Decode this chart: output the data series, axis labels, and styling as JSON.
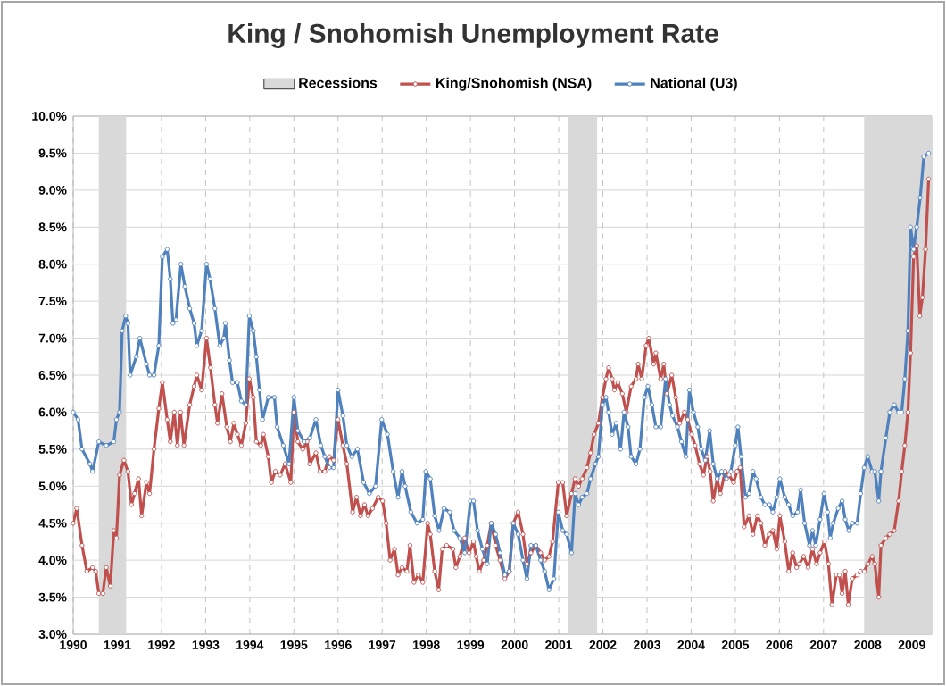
{
  "chart_data": {
    "type": "line",
    "title": "King / Snohomish Unemployment Rate",
    "xlim": [
      1990,
      2009.45
    ],
    "xticks": [
      1990,
      1991,
      1992,
      1993,
      1994,
      1995,
      1996,
      1997,
      1998,
      1999,
      2000,
      2001,
      2002,
      2003,
      2004,
      2005,
      2006,
      2007,
      2008,
      2009
    ],
    "ylim": [
      3.0,
      10.0
    ],
    "yticks": [
      {
        "value": 3.0,
        "label": "3.0%"
      },
      {
        "value": 3.5,
        "label": "3.5%"
      },
      {
        "value": 4.0,
        "label": "4.0%"
      },
      {
        "value": 4.5,
        "label": "4.5%"
      },
      {
        "value": 5.0,
        "label": "5.0%"
      },
      {
        "value": 5.5,
        "label": "5.5%"
      },
      {
        "value": 6.0,
        "label": "6.0%"
      },
      {
        "value": 6.5,
        "label": "6.5%"
      },
      {
        "value": 7.0,
        "label": "7.0%"
      },
      {
        "value": 7.5,
        "label": "7.5%"
      },
      {
        "value": 8.0,
        "label": "8.0%"
      },
      {
        "value": 8.5,
        "label": "8.5%"
      },
      {
        "value": 9.0,
        "label": "9.0%"
      },
      {
        "value": 9.5,
        "label": "9.5%"
      },
      {
        "value": 10.0,
        "label": "10.0%"
      }
    ],
    "grid": true,
    "legend": "top",
    "marker": "circle",
    "line_style": "solid",
    "bands": [
      {
        "axis": "x",
        "from": 1990.58,
        "to": 1991.2,
        "label": "Recessions",
        "color": "#d9d9d9"
      },
      {
        "axis": "x",
        "from": 2001.2,
        "to": 2001.87,
        "color": "#d9d9d9"
      },
      {
        "axis": "x",
        "from": 2007.92,
        "to": 2009.45,
        "color": "#d9d9d9"
      }
    ],
    "series": [
      {
        "name": "King/Snohomish (NSA)",
        "color": "#c0504d",
        "x": [
          1990.0,
          1990.08,
          1990.2,
          1990.31,
          1990.44,
          1990.51,
          1990.58,
          1990.67,
          1990.75,
          1990.84,
          1990.92,
          1990.98,
          1991.05,
          1991.15,
          1991.24,
          1991.32,
          1991.39,
          1991.48,
          1991.55,
          1991.66,
          1991.73,
          1991.83,
          1991.94,
          1992.02,
          1992.13,
          1992.2,
          1992.29,
          1992.36,
          1992.43,
          1992.51,
          1992.64,
          1992.74,
          1992.8,
          1992.91,
          1993.02,
          1993.11,
          1993.21,
          1993.27,
          1993.37,
          1993.48,
          1993.56,
          1993.64,
          1993.72,
          1993.81,
          1993.91,
          1993.99,
          1994.08,
          1994.15,
          1994.25,
          1994.31,
          1994.42,
          1994.49,
          1994.58,
          1994.69,
          1994.8,
          1994.93,
          1995.0,
          1995.09,
          1995.2,
          1995.3,
          1995.36,
          1995.5,
          1995.59,
          1995.7,
          1995.8,
          1995.9,
          1996.0,
          1996.11,
          1996.2,
          1996.33,
          1996.42,
          1996.51,
          1996.6,
          1996.68,
          1996.78,
          1996.91,
          1997.01,
          1997.09,
          1997.18,
          1997.28,
          1997.36,
          1997.45,
          1997.56,
          1997.63,
          1997.72,
          1997.82,
          1997.92,
          1998.03,
          1998.09,
          1998.19,
          1998.28,
          1998.36,
          1998.46,
          1998.6,
          1998.67,
          1998.76,
          1998.87,
          1998.97,
          1999.07,
          1999.13,
          1999.2,
          1999.3,
          1999.38,
          1999.47,
          1999.57,
          1999.67,
          1999.78,
          1999.88,
          1999.97,
          2000.08,
          2000.19,
          2000.28,
          2000.37,
          2000.48,
          2000.59,
          2000.68,
          2000.78,
          2000.86,
          2000.99,
          2001.09,
          2001.18,
          2001.29,
          2001.37,
          2001.45,
          2001.53,
          2001.64,
          2001.72,
          2001.8,
          2001.9,
          2001.99,
          2002.07,
          2002.13,
          2002.21,
          2002.26,
          2002.34,
          2002.44,
          2002.53,
          2002.64,
          2002.75,
          2002.8,
          2002.88,
          2002.98,
          2003.04,
          2003.15,
          2003.2,
          2003.31,
          2003.38,
          2003.45,
          2003.56,
          2003.65,
          2003.74,
          2003.85,
          2003.92,
          2004.01,
          2004.09,
          2004.19,
          2004.28,
          2004.36,
          2004.43,
          2004.5,
          2004.59,
          2004.66,
          2004.77,
          2004.86,
          2004.96,
          2005.04,
          2005.11,
          2005.2,
          2005.31,
          2005.4,
          2005.5,
          2005.58,
          2005.67,
          2005.77,
          2005.85,
          2005.94,
          2006.01,
          2006.12,
          2006.21,
          2006.3,
          2006.39,
          2006.45,
          2006.55,
          2006.65,
          2006.75,
          2006.84,
          2006.92,
          2007.02,
          2007.11,
          2007.19,
          2007.29,
          2007.36,
          2007.42,
          2007.49,
          2007.56,
          2007.65,
          2007.76,
          2007.84,
          2007.92,
          2008.0,
          2008.1,
          2008.16,
          2008.25,
          2008.3,
          2008.41,
          2008.5,
          2008.6,
          2008.7,
          2008.77,
          2008.84,
          2008.91,
          2008.97,
          2009.04,
          2009.11,
          2009.18,
          2009.24,
          2009.31,
          2009.38
        ],
        "values": [
          4.5,
          4.7,
          4.2,
          3.85,
          3.9,
          3.85,
          3.55,
          3.55,
          3.9,
          3.65,
          4.4,
          4.3,
          5.15,
          5.35,
          5.2,
          4.75,
          4.9,
          5.1,
          4.6,
          5.05,
          4.9,
          5.5,
          6.05,
          6.4,
          5.9,
          5.6,
          6.0,
          5.55,
          6.0,
          5.55,
          6.1,
          6.35,
          6.5,
          6.3,
          7.0,
          6.6,
          6.1,
          5.85,
          6.25,
          5.8,
          5.6,
          5.85,
          5.7,
          5.55,
          5.85,
          6.45,
          6.2,
          5.6,
          5.55,
          5.7,
          5.4,
          5.05,
          5.2,
          5.15,
          5.3,
          5.05,
          6.0,
          5.6,
          5.5,
          5.6,
          5.3,
          5.45,
          5.2,
          5.2,
          5.4,
          5.35,
          5.9,
          5.55,
          5.3,
          4.65,
          4.85,
          4.6,
          4.75,
          4.6,
          4.7,
          4.85,
          4.8,
          4.5,
          4.0,
          4.15,
          3.8,
          3.9,
          3.85,
          4.2,
          3.7,
          3.8,
          3.7,
          4.5,
          4.35,
          3.85,
          3.6,
          4.15,
          4.2,
          4.15,
          3.9,
          4.05,
          4.3,
          4.1,
          4.25,
          4.05,
          3.85,
          4.0,
          4.2,
          4.5,
          4.2,
          4.0,
          3.75,
          3.85,
          4.5,
          4.65,
          4.35,
          3.95,
          4.1,
          4.2,
          4.1,
          4.0,
          4.05,
          4.25,
          5.05,
          5.05,
          4.6,
          4.9,
          5.1,
          5.0,
          5.1,
          5.25,
          5.45,
          5.7,
          5.85,
          6.2,
          6.45,
          6.6,
          6.45,
          6.3,
          6.4,
          6.25,
          6.0,
          6.35,
          6.45,
          6.65,
          6.45,
          6.9,
          7.0,
          6.65,
          6.8,
          6.45,
          6.65,
          6.25,
          6.5,
          6.2,
          5.85,
          6.0,
          5.9,
          5.7,
          5.55,
          5.3,
          5.15,
          5.4,
          5.2,
          4.8,
          5.1,
          4.9,
          5.2,
          5.15,
          5.05,
          5.2,
          5.25,
          4.45,
          4.6,
          4.35,
          4.6,
          4.5,
          4.2,
          4.35,
          4.4,
          4.15,
          4.6,
          4.25,
          3.85,
          4.1,
          3.9,
          3.95,
          4.05,
          3.9,
          4.15,
          3.95,
          4.1,
          4.25,
          3.95,
          3.4,
          3.8,
          3.8,
          3.55,
          3.85,
          3.4,
          3.75,
          3.8,
          3.85,
          3.85,
          3.95,
          4.05,
          3.95,
          3.5,
          4.2,
          4.3,
          4.35,
          4.4,
          4.8,
          5.2,
          5.55,
          6.0,
          6.8,
          8.1,
          8.25,
          7.3,
          7.55,
          8.2,
          9.15
        ]
      },
      {
        "name": "National (U3)",
        "color": "#4f81bd",
        "x": [
          1990.0,
          1990.11,
          1990.2,
          1990.38,
          1990.44,
          1990.58,
          1990.75,
          1990.92,
          1990.98,
          1991.05,
          1991.11,
          1991.19,
          1991.24,
          1991.29,
          1991.43,
          1991.51,
          1991.66,
          1991.73,
          1991.83,
          1991.94,
          1992.02,
          1992.13,
          1992.2,
          1992.26,
          1992.33,
          1992.44,
          1992.53,
          1992.64,
          1992.74,
          1992.8,
          1992.91,
          1993.02,
          1993.1,
          1993.21,
          1993.32,
          1993.41,
          1993.45,
          1993.54,
          1993.61,
          1993.72,
          1993.81,
          1993.91,
          1993.99,
          1994.08,
          1994.15,
          1994.22,
          1994.29,
          1994.42,
          1994.56,
          1994.62,
          1994.76,
          1994.89,
          1995.0,
          1995.09,
          1995.23,
          1995.36,
          1995.5,
          1995.61,
          1995.7,
          1995.8,
          1995.9,
          1996.0,
          1996.11,
          1996.2,
          1996.31,
          1996.44,
          1996.58,
          1996.71,
          1996.85,
          1996.99,
          1997.12,
          1997.25,
          1997.36,
          1997.45,
          1997.52,
          1997.65,
          1997.79,
          1997.92,
          1997.99,
          1998.09,
          1998.19,
          1998.29,
          1998.4,
          1998.53,
          1998.63,
          1998.76,
          1998.87,
          1999.0,
          1999.07,
          1999.16,
          1999.27,
          1999.38,
          1999.47,
          1999.57,
          1999.67,
          1999.78,
          1999.88,
          1999.97,
          2000.08,
          2000.19,
          2000.28,
          2000.37,
          2000.48,
          2000.59,
          2000.68,
          2000.78,
          2000.89,
          2000.99,
          2001.09,
          2001.18,
          2001.29,
          2001.37,
          2001.45,
          2001.53,
          2001.64,
          2001.72,
          2001.83,
          2001.9,
          2001.99,
          2002.07,
          2002.13,
          2002.21,
          2002.3,
          2002.4,
          2002.48,
          2002.57,
          2002.64,
          2002.75,
          2002.84,
          2002.94,
          2003.02,
          2003.11,
          2003.2,
          2003.31,
          2003.42,
          2003.51,
          2003.58,
          2003.69,
          2003.78,
          2003.88,
          2003.96,
          2004.05,
          2004.15,
          2004.23,
          2004.32,
          2004.42,
          2004.5,
          2004.59,
          2004.69,
          2004.8,
          2004.9,
          2005.0,
          2005.06,
          2005.13,
          2005.23,
          2005.31,
          2005.4,
          2005.47,
          2005.58,
          2005.67,
          2005.77,
          2005.85,
          2005.94,
          2006.01,
          2006.12,
          2006.21,
          2006.3,
          2006.41,
          2006.48,
          2006.57,
          2006.68,
          2006.75,
          2006.82,
          2006.92,
          2007.01,
          2007.09,
          2007.15,
          2007.22,
          2007.33,
          2007.42,
          2007.49,
          2007.57,
          2007.65,
          2007.76,
          2007.84,
          2007.92,
          2008.0,
          2008.1,
          2008.16,
          2008.25,
          2008.3,
          2008.41,
          2008.5,
          2008.6,
          2008.7,
          2008.77,
          2008.84,
          2008.91,
          2008.97,
          2009.04,
          2009.11,
          2009.19,
          2009.27,
          2009.38
        ],
        "values": [
          6.0,
          5.9,
          5.5,
          5.3,
          5.2,
          5.6,
          5.55,
          5.6,
          5.9,
          6.0,
          7.1,
          7.3,
          7.2,
          6.5,
          6.75,
          7.0,
          6.65,
          6.5,
          6.5,
          6.9,
          8.1,
          8.2,
          7.8,
          7.2,
          7.25,
          8.0,
          7.7,
          7.4,
          7.2,
          6.9,
          7.1,
          8.0,
          7.8,
          7.4,
          6.9,
          7.0,
          7.2,
          6.7,
          6.4,
          6.4,
          6.15,
          6.1,
          7.3,
          7.1,
          6.75,
          6.3,
          5.9,
          6.2,
          6.2,
          5.8,
          5.55,
          5.3,
          6.2,
          5.75,
          5.6,
          5.65,
          5.9,
          5.55,
          5.4,
          5.25,
          5.25,
          6.3,
          5.95,
          5.55,
          5.4,
          5.5,
          5.05,
          4.9,
          5.0,
          5.9,
          5.7,
          5.2,
          4.85,
          5.2,
          5.0,
          4.65,
          4.5,
          4.55,
          5.2,
          5.1,
          4.6,
          4.4,
          4.7,
          4.65,
          4.4,
          4.3,
          4.1,
          4.8,
          4.8,
          4.4,
          4.15,
          3.95,
          4.5,
          4.35,
          4.1,
          3.8,
          3.85,
          4.5,
          4.35,
          4.0,
          3.75,
          4.2,
          4.2,
          4.0,
          3.85,
          3.6,
          3.75,
          4.65,
          4.4,
          4.35,
          4.1,
          4.9,
          4.75,
          4.85,
          4.9,
          5.1,
          5.3,
          5.4,
          6.1,
          6.2,
          6.0,
          5.7,
          5.85,
          5.5,
          6.0,
          5.8,
          5.4,
          5.3,
          5.5,
          6.2,
          6.35,
          6.1,
          5.8,
          5.8,
          6.45,
          6.1,
          5.95,
          5.8,
          5.6,
          5.4,
          6.3,
          6.0,
          5.8,
          5.5,
          5.35,
          5.75,
          5.3,
          5.1,
          5.2,
          5.1,
          5.2,
          5.55,
          5.8,
          5.4,
          4.85,
          4.9,
          5.2,
          5.1,
          4.85,
          4.75,
          4.75,
          4.65,
          4.85,
          5.1,
          4.85,
          4.75,
          4.6,
          4.65,
          4.95,
          4.5,
          4.2,
          4.4,
          4.2,
          4.55,
          4.9,
          4.65,
          4.3,
          4.5,
          4.7,
          4.8,
          4.55,
          4.4,
          4.5,
          4.5,
          4.9,
          5.25,
          5.4,
          5.2,
          5.2,
          4.8,
          5.2,
          5.65,
          6.0,
          6.1,
          6.0,
          6.0,
          6.45,
          7.1,
          8.5,
          8.2,
          8.5,
          8.9,
          9.45,
          9.5
        ]
      }
    ]
  }
}
